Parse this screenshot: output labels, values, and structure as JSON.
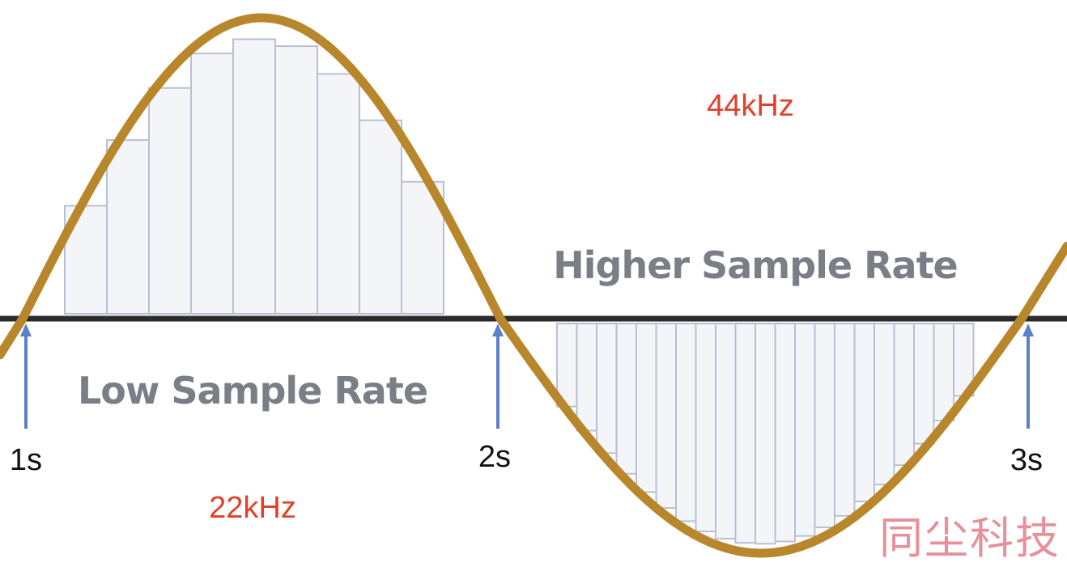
{
  "labels": {
    "low_rate_caption": "Low Sample Rate",
    "high_rate_caption": "Higher Sample Rate",
    "low_rate_value": "22kHz",
    "high_rate_value": "44kHz"
  },
  "time_markers": [
    "1s",
    "2s",
    "3s"
  ],
  "watermark": "同尘科技",
  "samples": {
    "low_rate_bar_count": 9,
    "high_rate_bar_count": 21
  },
  "colors": {
    "wave": "#b8862b",
    "axis": "#2b2b2b",
    "arrow": "#5b7fc9",
    "rate_text": "#e0402c",
    "caption_text": "#7a7f87",
    "bar_fill": "#f4f5f9",
    "bar_stroke": "#b9bfd4",
    "watermark": "#e8909a"
  }
}
